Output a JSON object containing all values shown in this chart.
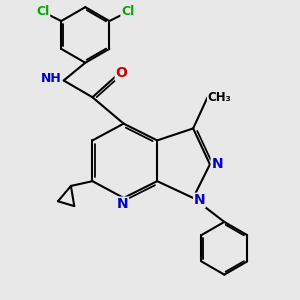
{
  "bg_color": "#e8e8e8",
  "bond_color": "#000000",
  "bond_width": 1.5,
  "N_color": "#0000cc",
  "O_color": "#cc0000",
  "Cl_color": "#00aa00",
  "font_size": 9,
  "fig_size": [
    3.0,
    3.0
  ],
  "dpi": 100,
  "xlim": [
    0.5,
    6.2
  ],
  "ylim": [
    0.3,
    6.5
  ]
}
